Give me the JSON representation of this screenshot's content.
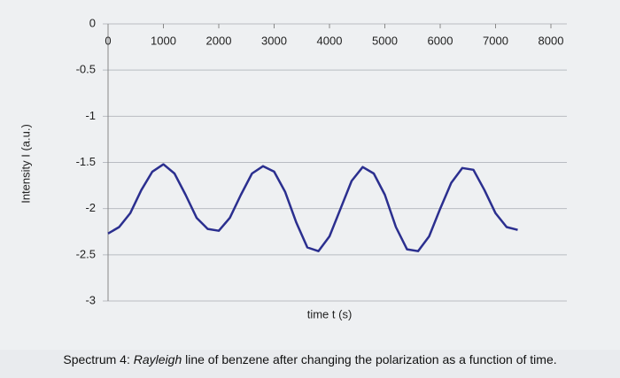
{
  "chart_data": {
    "type": "line",
    "xlabel": "time t (s)",
    "ylabel": "Intensity I (a.u.)",
    "caption_prefix": "Spectrum 4:",
    "caption_italic": "Rayleigh",
    "caption_rest": "line of benzene after changing the polarization as a function of time.",
    "x": [
      0,
      200,
      400,
      600,
      800,
      1000,
      1200,
      1400,
      1600,
      1800,
      2000,
      2200,
      2400,
      2600,
      2800,
      3000,
      3200,
      3400,
      3600,
      3800,
      4000,
      4200,
      4400,
      4600,
      4800,
      5000,
      5200,
      5400,
      5600,
      5800,
      6000,
      6200,
      6400,
      6600,
      6800,
      7000,
      7200,
      7400
    ],
    "series": [
      {
        "name": "Intensity",
        "color": "#2b2f8f",
        "values": [
          -2.27,
          -2.2,
          -2.05,
          -1.8,
          -1.6,
          -1.52,
          -1.62,
          -1.85,
          -2.1,
          -2.22,
          -2.24,
          -2.1,
          -1.85,
          -1.62,
          -1.54,
          -1.6,
          -1.82,
          -2.15,
          -2.42,
          -2.46,
          -2.3,
          -2.0,
          -1.7,
          -1.55,
          -1.62,
          -1.85,
          -2.2,
          -2.44,
          -2.46,
          -2.3,
          -2.0,
          -1.72,
          -1.56,
          -1.58,
          -1.8,
          -2.05,
          -2.2,
          -2.23
        ]
      }
    ],
    "xlim": [
      0,
      8000
    ],
    "xticks": [
      0,
      1000,
      2000,
      3000,
      4000,
      5000,
      6000,
      7000,
      8000
    ],
    "ylim": [
      -3,
      0
    ],
    "yticks": [
      0,
      -0.5,
      -1,
      -1.5,
      -2,
      -2.5,
      -3
    ],
    "grid": true
  }
}
